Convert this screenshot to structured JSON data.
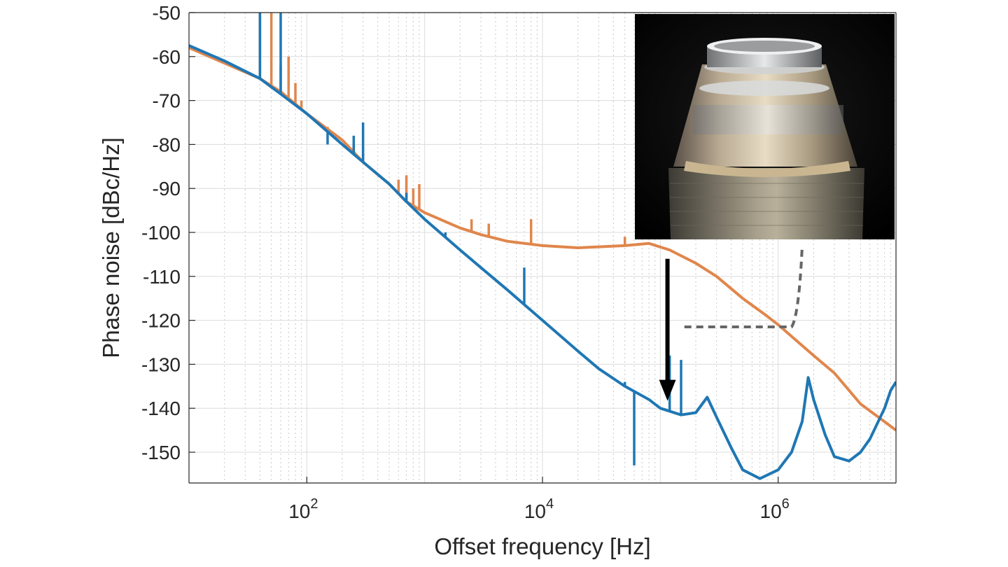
{
  "chart_data": {
    "type": "line",
    "xlabel": "Offset frequency [Hz]",
    "ylabel": "Phase noise [dBc/Hz]",
    "xscale": "log",
    "xlim": [
      10,
      10000000
    ],
    "ylim": [
      -157,
      -50
    ],
    "x_ticks": [
      {
        "value": 100,
        "base": "10",
        "exp": "2"
      },
      {
        "value": 10000,
        "base": "10",
        "exp": "4"
      },
      {
        "value": 1000000,
        "base": "10",
        "exp": "6"
      }
    ],
    "y_ticks": [
      -50,
      -60,
      -70,
      -80,
      -90,
      -100,
      -110,
      -120,
      -130,
      -140,
      -150
    ],
    "grid": true,
    "legend": "none",
    "series": [
      {
        "color": "#e0864c",
        "points": [
          [
            10,
            -58
          ],
          [
            20,
            -61.5
          ],
          [
            40,
            -65
          ],
          [
            60,
            -68
          ],
          [
            100,
            -73
          ],
          [
            200,
            -79
          ],
          [
            300,
            -84
          ],
          [
            500,
            -89
          ],
          [
            700,
            -93
          ],
          [
            1000,
            -95.5
          ],
          [
            2000,
            -99
          ],
          [
            3000,
            -100.5
          ],
          [
            5000,
            -102
          ],
          [
            10000,
            -103
          ],
          [
            20000,
            -103.5
          ],
          [
            50000,
            -103
          ],
          [
            80000,
            -102.5
          ],
          [
            120000,
            -104
          ],
          [
            200000,
            -107
          ],
          [
            300000,
            -110
          ],
          [
            500000,
            -115
          ],
          [
            800000,
            -119
          ],
          [
            1000000,
            -121
          ],
          [
            2000000,
            -128
          ],
          [
            3000000,
            -132
          ],
          [
            5000000,
            -139
          ],
          [
            10000000,
            -145
          ]
        ],
        "spurs": [
          [
            40,
            -50
          ],
          [
            50,
            -50
          ],
          [
            60,
            -62
          ],
          [
            70,
            -60
          ],
          [
            80,
            -66
          ],
          [
            90,
            -70
          ],
          [
            150,
            -76
          ],
          [
            180,
            -78
          ],
          [
            250,
            -80
          ],
          [
            300,
            -82
          ],
          [
            600,
            -88
          ],
          [
            700,
            -87
          ],
          [
            800,
            -90
          ],
          [
            900,
            -89
          ],
          [
            2500,
            -97
          ],
          [
            3500,
            -98
          ],
          [
            8000,
            -97
          ],
          [
            50000,
            -101
          ]
        ]
      },
      {
        "color": "#1f77b4",
        "points": [
          [
            10,
            -57.5
          ],
          [
            20,
            -61
          ],
          [
            40,
            -65
          ],
          [
            60,
            -68.5
          ],
          [
            100,
            -73
          ],
          [
            200,
            -80
          ],
          [
            300,
            -84
          ],
          [
            500,
            -89
          ],
          [
            700,
            -93
          ],
          [
            1000,
            -97
          ],
          [
            2000,
            -104
          ],
          [
            3000,
            -108
          ],
          [
            5000,
            -113
          ],
          [
            10000,
            -120
          ],
          [
            20000,
            -127
          ],
          [
            30000,
            -131
          ],
          [
            50000,
            -135
          ],
          [
            80000,
            -138
          ],
          [
            100000,
            -140
          ],
          [
            150000,
            -141.5
          ],
          [
            200000,
            -141
          ],
          [
            250000,
            -137.5
          ],
          [
            300000,
            -142
          ],
          [
            400000,
            -149
          ],
          [
            500000,
            -154
          ],
          [
            700000,
            -156
          ],
          [
            1000000,
            -154
          ],
          [
            1300000,
            -150
          ],
          [
            1600000,
            -143
          ],
          [
            1800000,
            -133
          ],
          [
            2000000,
            -138
          ],
          [
            2500000,
            -146
          ],
          [
            3000000,
            -151
          ],
          [
            4000000,
            -152
          ],
          [
            5000000,
            -150
          ],
          [
            6000000,
            -147
          ],
          [
            8000000,
            -140
          ],
          [
            9000000,
            -136
          ],
          [
            10000000,
            -134
          ]
        ],
        "spurs": [
          [
            40,
            -50
          ],
          [
            60,
            -50
          ],
          [
            150,
            -80
          ],
          [
            250,
            -78
          ],
          [
            300,
            -75
          ],
          [
            700,
            -91
          ],
          [
            1500,
            -100
          ],
          [
            7000,
            -108
          ],
          [
            50000,
            -134
          ],
          [
            60000,
            -153
          ],
          [
            120000,
            -128
          ],
          [
            150000,
            -129
          ]
        ]
      }
    ],
    "annotations": [
      {
        "type": "arrow",
        "from": [
          115000,
          -106
        ],
        "to": [
          115000,
          -138
        ],
        "color": "#000000"
      },
      {
        "type": "dashed-curve",
        "color": "#666666",
        "points": [
          [
            160000,
            -121.5
          ],
          [
            1300000,
            -121.5
          ],
          [
            1500000,
            -119
          ],
          [
            1600000,
            -103
          ]
        ]
      },
      {
        "type": "inset-photo",
        "anchor": "top-right",
        "subject": "crystalline whispering-gallery resonator"
      }
    ]
  }
}
